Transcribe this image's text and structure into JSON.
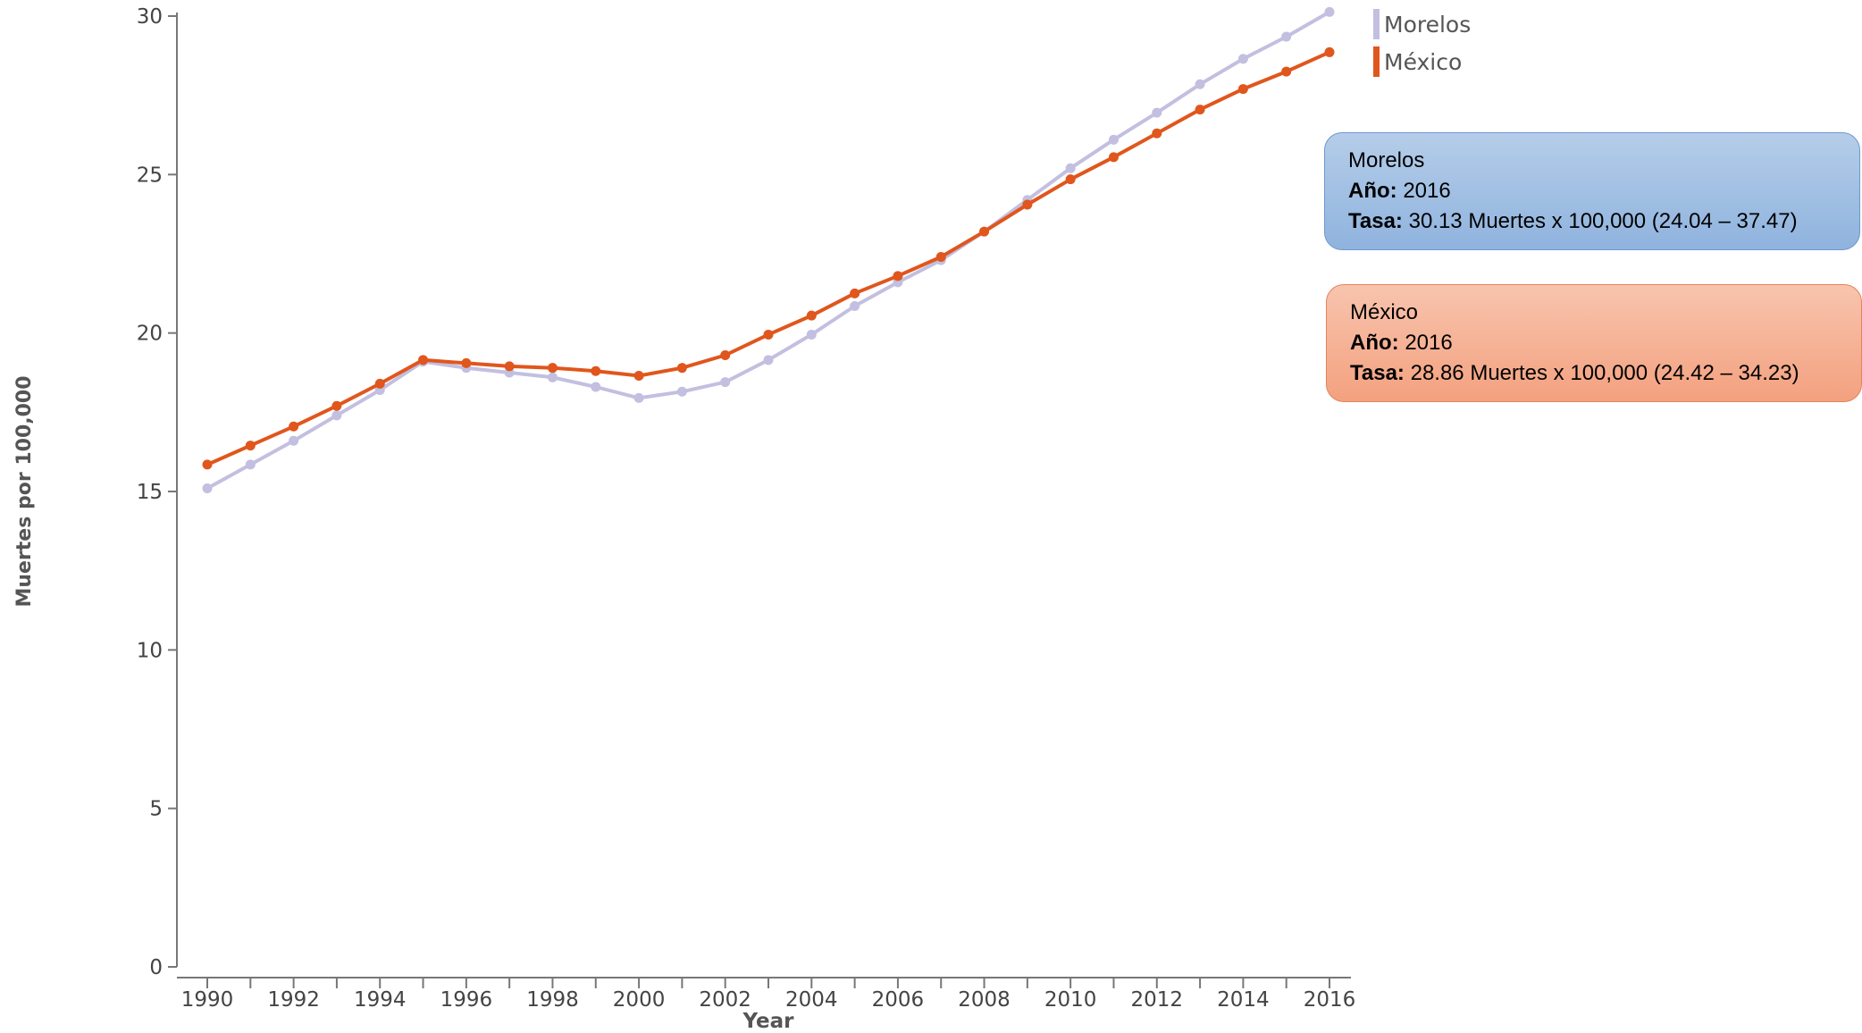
{
  "chart_data": {
    "type": "line",
    "title": "",
    "xlabel": "Year",
    "ylabel": "Muertes por 100,000",
    "xlim": [
      1990,
      2016
    ],
    "ylim": [
      0,
      30
    ],
    "x_ticks": [
      "1990",
      "1992",
      "1994",
      "1996",
      "1998",
      "2000",
      "2002",
      "2004",
      "2006",
      "2008",
      "2010",
      "2012",
      "2014",
      "2016"
    ],
    "y_ticks": [
      "0",
      "5",
      "10",
      "15",
      "20",
      "25",
      "30"
    ],
    "grid": false,
    "legend_position": "top-right",
    "x": [
      1990,
      1991,
      1992,
      1993,
      1994,
      1995,
      1996,
      1997,
      1998,
      1999,
      2000,
      2001,
      2002,
      2003,
      2004,
      2005,
      2006,
      2007,
      2008,
      2009,
      2010,
      2011,
      2012,
      2013,
      2014,
      2015,
      2016
    ],
    "series": [
      {
        "name": "Morelos",
        "color": "#c2bfe0",
        "values": [
          15.1,
          15.85,
          16.6,
          17.4,
          18.2,
          19.1,
          18.9,
          18.75,
          18.6,
          18.3,
          17.95,
          18.15,
          18.45,
          19.15,
          19.95,
          20.85,
          21.6,
          22.3,
          23.2,
          24.2,
          25.2,
          26.1,
          26.95,
          27.85,
          28.65,
          29.35,
          30.13
        ]
      },
      {
        "name": "México",
        "color": "#e0561d",
        "values": [
          15.85,
          16.45,
          17.05,
          17.7,
          18.4,
          19.15,
          19.05,
          18.95,
          18.9,
          18.8,
          18.65,
          18.9,
          19.3,
          19.95,
          20.55,
          21.25,
          21.8,
          22.4,
          23.2,
          24.05,
          24.85,
          25.55,
          26.3,
          27.05,
          27.7,
          28.25,
          28.86
        ]
      }
    ]
  },
  "tooltips": [
    {
      "name": "Morelos",
      "year_label": "Año:",
      "year_value": "2016",
      "rate_label": "Tasa:",
      "rate_value": "30.13 Muertes x 100,000 (24.04 – 37.47)"
    },
    {
      "name": "México",
      "year_label": "Año:",
      "year_value": "2016",
      "rate_label": "Tasa:",
      "rate_value": "28.86 Muertes x 100,000 (24.42 – 34.23)"
    }
  ]
}
